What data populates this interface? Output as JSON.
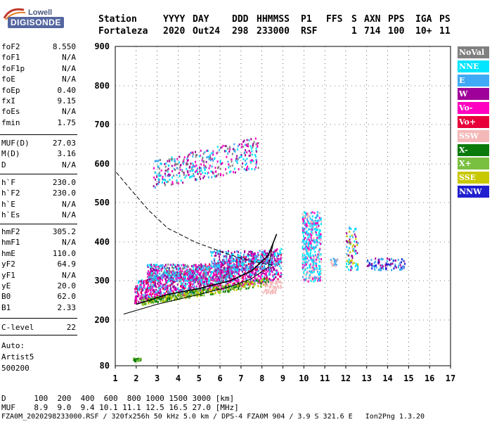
{
  "logo": {
    "line1": "Lowell",
    "line2": "DIGISONDE"
  },
  "header": {
    "labels": [
      "Station",
      "YYYY",
      "DAY",
      "DDD",
      "HHMMSS",
      "P1",
      "FFS",
      "S",
      "AXN",
      "PPS",
      "IGA",
      "PS"
    ],
    "values": [
      "Fortaleza",
      "2020",
      "Out24",
      "298",
      "233000",
      "RSF",
      "1",
      "714",
      "100",
      "10+",
      "11"
    ]
  },
  "params_group1": [
    {
      "name": "foF2",
      "value": "8.550"
    },
    {
      "name": "foF1",
      "value": "N/A"
    },
    {
      "name": "foF1p",
      "value": "N/A"
    },
    {
      "name": "foE",
      "value": "N/A"
    },
    {
      "name": "foEp",
      "value": "0.40"
    },
    {
      "name": "fxI",
      "value": "9.15"
    },
    {
      "name": "foEs",
      "value": "N/A"
    },
    {
      "name": "fmin",
      "value": "1.75"
    }
  ],
  "params_group2": [
    {
      "name": "MUF(D)",
      "value": "27.03"
    },
    {
      "name": "M(D)",
      "value": "3.16"
    },
    {
      "name": "D",
      "value": "N/A"
    }
  ],
  "params_group3": [
    {
      "name": "h`F",
      "value": "230.0"
    },
    {
      "name": "h`F2",
      "value": "230.0"
    },
    {
      "name": "h`E",
      "value": "N/A"
    },
    {
      "name": "h`Es",
      "value": "N/A"
    }
  ],
  "params_group4": [
    {
      "name": "hmF2",
      "value": "305.2"
    },
    {
      "name": "hmF1",
      "value": "N/A"
    },
    {
      "name": "hmE",
      "value": "110.0"
    },
    {
      "name": "yF2",
      "value": "64.9"
    },
    {
      "name": "yF1",
      "value": "N/A"
    },
    {
      "name": "yE",
      "value": "20.0"
    },
    {
      "name": "B0",
      "value": "62.0"
    },
    {
      "name": "B1",
      "value": "2.33"
    }
  ],
  "clevel": {
    "name": "C-level",
    "value": "22"
  },
  "auto": [
    "Auto:",
    "Artist5",
    "500200"
  ],
  "legend": [
    {
      "label": "NoVal",
      "color": "#808080"
    },
    {
      "label": "NNE",
      "color": "#00e5ff"
    },
    {
      "label": "E",
      "color": "#3fa9f5"
    },
    {
      "label": "W",
      "color": "#a0009a"
    },
    {
      "label": "Vo-",
      "color": "#ff00c0"
    },
    {
      "label": "Vo+",
      "color": "#e8003a"
    },
    {
      "label": "SSW",
      "color": "#f4b8b8"
    },
    {
      "label": "X-",
      "color": "#0a7a0a"
    },
    {
      "label": "X+",
      "color": "#7ac040"
    },
    {
      "label": "SSE",
      "color": "#c8c800"
    },
    {
      "label": "NNW",
      "color": "#2020d0"
    }
  ],
  "chart_data": {
    "type": "scatter",
    "y_ticks": [
      "900",
      "800",
      "700",
      "600",
      "500",
      "400",
      "300",
      "200",
      "80"
    ],
    "x_ticks": [
      "1",
      "2",
      "3",
      "4",
      "5",
      "6",
      "7",
      "8",
      "9",
      "10",
      "11",
      "12",
      "13",
      "14",
      "15",
      "16",
      "17"
    ],
    "xlim": [
      1,
      17
    ],
    "y_scale": "segmented",
    "grid": true,
    "curves": {
      "profile": {
        "x": [
          1.4,
          3,
          5,
          6.5,
          7.5,
          8.3,
          8.55
        ],
        "y": [
          215,
          240,
          265,
          285,
          305,
          335,
          400
        ]
      },
      "trace": {
        "x": [
          2,
          3.5,
          5,
          6.5,
          7.5,
          8.3,
          8.7
        ],
        "y": [
          240,
          265,
          280,
          300,
          325,
          365,
          420
        ]
      },
      "muf_dashed": {
        "x": [
          1.05,
          1.8,
          2.6,
          3.5,
          4.8,
          6.3,
          7.5,
          8.5
        ],
        "y": [
          578,
          530,
          480,
          435,
          400,
          370,
          350,
          340
        ]
      }
    }
  },
  "footer": {
    "line1": "D      100  200  400  600  800 1000 1500 3000 [km]",
    "line2": "MUF    8.9  9.0  9.4 10.1 11.1 12.5 16.5 27.0 [MHz]",
    "line3": "FZA0M_2020298233000.RSF / 320fx256h 50 kHz 5.0 km / DPS-4 FZA0M 904 / 3.9 S 321.6 E   Ion2Png 1.3.20"
  }
}
